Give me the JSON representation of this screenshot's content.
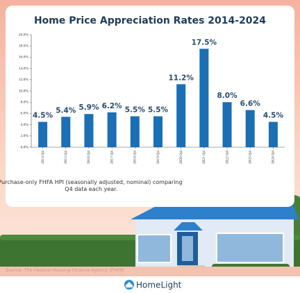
{
  "chart_data": {
    "type": "bar",
    "title": "Home Price Appreciation Rates 2014-2024",
    "categories": [
      "2014 Q4",
      "2015 Q4",
      "2016 Q4",
      "2017 Q4",
      "2018 Q4",
      "2019 Q4",
      "2020 Q4",
      "2021 Q4",
      "2022 Q4",
      "2023 Q4",
      "2024 Q4"
    ],
    "values": [
      4.5,
      5.4,
      5.9,
      6.2,
      5.5,
      5.5,
      11.2,
      17.5,
      8.0,
      6.6,
      4.5
    ],
    "value_labels": [
      "4.5%",
      "5.4%",
      "5.9%",
      "6.2%",
      "5.5%",
      "5.5%",
      "11.2%",
      "17.5%",
      "8.0%",
      "6.6%",
      "4.5%"
    ],
    "color": "#1a6fb5",
    "ylim": [
      0,
      20
    ],
    "yticks": [
      {
        "value": 0,
        "label": "0.0%"
      },
      {
        "value": 2,
        "label": "2.0%"
      },
      {
        "value": 4,
        "label": "4.0%"
      },
      {
        "value": 6,
        "label": "6.0%"
      },
      {
        "value": 8,
        "label": "8.0%"
      },
      {
        "value": 10,
        "label": "10.0%"
      },
      {
        "value": 12,
        "label": "12.0%"
      },
      {
        "value": 14,
        "label": "14.0%"
      },
      {
        "value": 16,
        "label": "16.0%"
      },
      {
        "value": 18,
        "label": "18.0%"
      },
      {
        "value": 20,
        "label": "20.0%"
      }
    ],
    "grid": false,
    "note": "Purchase-only FHFA HPI (seasonally adjusted, nominal) comparing Q4 data each year.",
    "source": "Source: The Federal Housing Finance Agency (FHFA)",
    "brand": "HomeLight"
  }
}
